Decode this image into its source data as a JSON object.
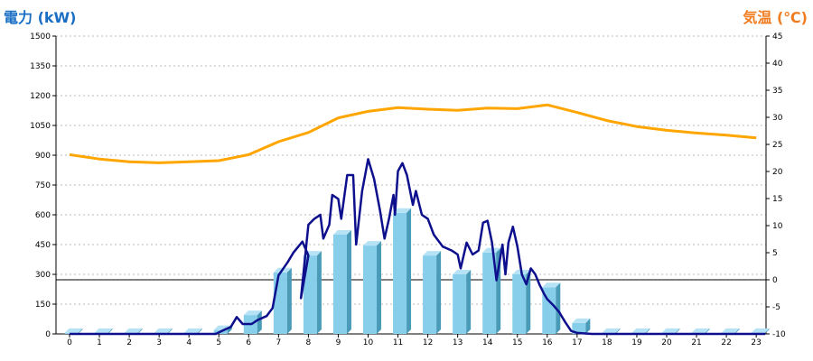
{
  "chart_data": {
    "type": "bar+line",
    "colors": {
      "bar": "#87ceeb",
      "bar_side": "#4a9bb8",
      "bar_top": "#b5e3f5",
      "power_line": "#0d0f8c",
      "temp_line": "#ffa500",
      "left_title": "#1a6fc4",
      "right_title": "#f07c20",
      "grid": "#bbbbbb"
    },
    "left_axis": {
      "title": "電力 (kW)",
      "ylim": [
        0,
        1500
      ],
      "ticks": [
        "0",
        "150",
        "300",
        "450",
        "600",
        "750",
        "900",
        "1050",
        "1200",
        "1350",
        "1500"
      ]
    },
    "right_axis": {
      "title": "気温 (℃)",
      "ylim": [
        -10,
        45
      ],
      "ticks": [
        "-10",
        "-5",
        "0",
        "5",
        "10",
        "15",
        "20",
        "25",
        "30",
        "35",
        "40",
        "45"
      ]
    },
    "categories": [
      "0",
      "1",
      "2",
      "3",
      "4",
      "5",
      "6",
      "7",
      "8",
      "9",
      "10",
      "11",
      "12",
      "13",
      "14",
      "15",
      "16",
      "17",
      "18",
      "19",
      "20",
      "21",
      "22",
      "23"
    ],
    "hourly_power_kw": [
      5,
      5,
      5,
      5,
      5,
      20,
      95,
      310,
      395,
      500,
      445,
      610,
      395,
      300,
      410,
      300,
      235,
      55,
      5,
      5,
      5,
      5,
      5,
      5
    ],
    "temperature_c": [
      23.1,
      22.3,
      21.8,
      21.6,
      21.8,
      22.0,
      23.1,
      25.5,
      27.2,
      29.9,
      31.1,
      31.8,
      31.5,
      31.3,
      31.7,
      31.6,
      32.3,
      30.9,
      29.4,
      28.3,
      27.6,
      27.1,
      26.7,
      26.2
    ],
    "power_trace": [
      [
        0,
        0
      ],
      [
        4.9,
        0
      ],
      [
        5.1,
        15
      ],
      [
        5.4,
        35
      ],
      [
        5.6,
        85
      ],
      [
        5.8,
        50
      ],
      [
        6.1,
        50
      ],
      [
        6.3,
        70
      ],
      [
        6.6,
        90
      ],
      [
        6.8,
        130
      ],
      [
        7.0,
        295
      ],
      [
        7.3,
        360
      ],
      [
        7.5,
        410
      ],
      [
        7.8,
        465
      ],
      [
        8.0,
        395
      ],
      [
        7.75,
        180
      ],
      [
        8.0,
        550
      ],
      [
        8.2,
        580
      ],
      [
        8.4,
        600
      ],
      [
        8.5,
        480
      ],
      [
        8.7,
        550
      ],
      [
        8.8,
        700
      ],
      [
        9.0,
        680
      ],
      [
        9.1,
        580
      ],
      [
        9.3,
        800
      ],
      [
        9.5,
        800
      ],
      [
        9.6,
        450
      ],
      [
        9.8,
        720
      ],
      [
        10.0,
        880
      ],
      [
        10.2,
        780
      ],
      [
        10.4,
        620
      ],
      [
        10.55,
        480
      ],
      [
        10.7,
        580
      ],
      [
        10.85,
        700
      ],
      [
        10.9,
        600
      ],
      [
        11.0,
        820
      ],
      [
        11.15,
        860
      ],
      [
        11.3,
        800
      ],
      [
        11.5,
        650
      ],
      [
        11.6,
        720
      ],
      [
        11.8,
        600
      ],
      [
        12.0,
        580
      ],
      [
        12.2,
        500
      ],
      [
        12.5,
        440
      ],
      [
        12.8,
        420
      ],
      [
        13.0,
        400
      ],
      [
        13.1,
        330
      ],
      [
        13.3,
        460
      ],
      [
        13.5,
        400
      ],
      [
        13.7,
        420
      ],
      [
        13.85,
        560
      ],
      [
        14.0,
        570
      ],
      [
        14.15,
        460
      ],
      [
        14.3,
        270
      ],
      [
        14.5,
        450
      ],
      [
        14.6,
        300
      ],
      [
        14.7,
        460
      ],
      [
        14.85,
        540
      ],
      [
        15.0,
        440
      ],
      [
        15.15,
        300
      ],
      [
        15.3,
        250
      ],
      [
        15.45,
        330
      ],
      [
        15.6,
        300
      ],
      [
        15.75,
        245
      ],
      [
        15.9,
        200
      ],
      [
        16.0,
        175
      ],
      [
        16.2,
        145
      ],
      [
        16.4,
        110
      ],
      [
        16.6,
        60
      ],
      [
        16.8,
        15
      ],
      [
        17.0,
        5
      ],
      [
        17.5,
        0
      ],
      [
        23.3,
        0
      ]
    ]
  }
}
